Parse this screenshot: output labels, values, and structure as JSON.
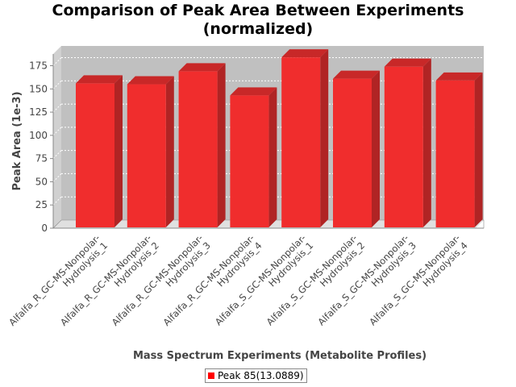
{
  "chart_data": {
    "type": "bar",
    "title_line1": "Comparison of Peak Area Between Experiments",
    "title_line2": "(normalized)",
    "xlabel": "Mass Spectrum Experiments (Metabolite Profiles)",
    "ylabel": "Peak Area (1e-3)",
    "ylim": [
      0,
      185
    ],
    "yticks": [
      0,
      25,
      50,
      75,
      100,
      125,
      150,
      175
    ],
    "grid": true,
    "legend_position": "bottom",
    "bar_color": "#f02d2d",
    "categories": [
      [
        "Alfalfa_R_GC-MS-Nonpolar-",
        "Hydrolysis_1"
      ],
      [
        "Alfalfa_R_GC-MS-Nonpolar-",
        "Hydrolysis_2"
      ],
      [
        "Alfalfa_R_GC-MS-Nonpolar-",
        "Hydrolysis_3"
      ],
      [
        "Alfalfa_R_GC-MS-Nonpolar-",
        "Hydrolysis_4"
      ],
      [
        "Alfalfa_S_GC-MS-Nonpolar-",
        "Hydrolysis_1"
      ],
      [
        "Alfalfa_S_GC-MS-Nonpolar-",
        "Hydrolysis_2"
      ],
      [
        "Alfalfa_S_GC-MS-Nonpolar-",
        "Hydrolysis_3"
      ],
      [
        "Alfalfa_S_GC-MS-Nonpolar-",
        "Hydrolysis_4"
      ]
    ],
    "series": [
      {
        "name": "Peak 85(13.0889)",
        "values": [
          156,
          155,
          169,
          143,
          184,
          161,
          174,
          159
        ]
      }
    ]
  }
}
